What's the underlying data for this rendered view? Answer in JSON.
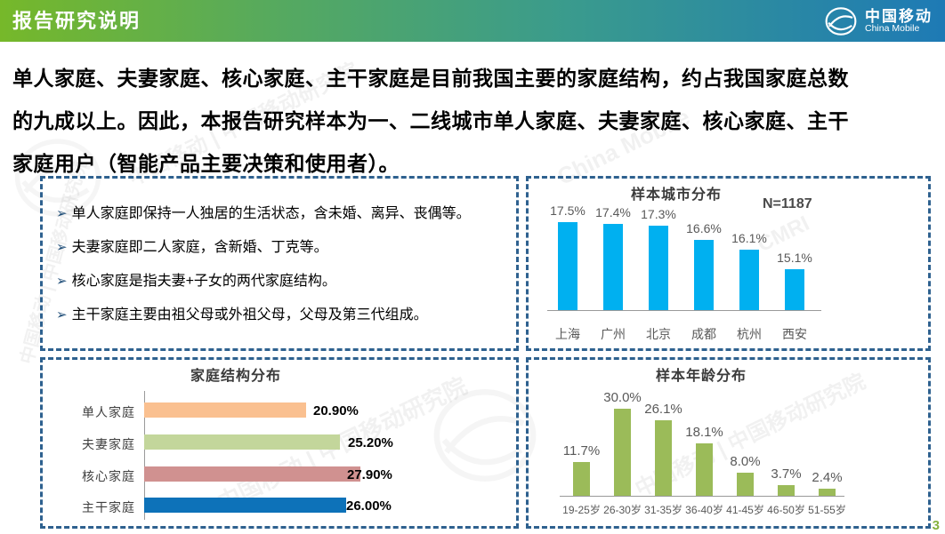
{
  "header": {
    "title": "报告研究说明",
    "brand": {
      "name_cn": "中国移动",
      "name_en": "China Mobile"
    }
  },
  "intro": {
    "line1": "单人家庭、夫妻家庭、核心家庭、主干家庭是目前我国主要的家庭结构，约占我国家庭总数",
    "line2": "的九成以上。因此，本报告研究样本为一、二线城市单人家庭、夫妻家庭、核心家庭、主干",
    "line3": "家庭用户（智能产品主要决策和使用者）。"
  },
  "definitions": {
    "bullet_glyph": "➢",
    "items": [
      "单人家庭即保持一人独居的生活状态，含未婚、离异、丧偶等。",
      "夫妻家庭即二人家庭，含新婚、丁克等。",
      "核心家庭是指夫妻+子女的两代家庭结构。",
      "主干家庭主要由祖父母或外祖父母，父母及第三代组成。"
    ]
  },
  "chart_data": [
    {
      "id": "city",
      "type": "bar",
      "title": "样本城市分布",
      "note": "N=1187",
      "categories": [
        "上海",
        "广州",
        "北京",
        "成都",
        "杭州",
        "西安"
      ],
      "values": [
        17.5,
        17.4,
        17.3,
        16.6,
        16.1,
        15.1
      ],
      "unit": "%",
      "value_decimals": 1,
      "ylim": [
        13,
        18
      ],
      "grid": false,
      "bar_color": "#00b0f0"
    },
    {
      "id": "family",
      "type": "bar-horizontal",
      "title": "家庭结构分布",
      "categories": [
        "单人家庭",
        "夫妻家庭",
        "核心家庭",
        "主干家庭"
      ],
      "values": [
        20.9,
        25.2,
        27.9,
        26.0
      ],
      "unit": "%",
      "value_decimals": 2,
      "xlim": [
        0,
        28
      ],
      "grid": false,
      "bar_colors": [
        "#fac090",
        "#c3d69b",
        "#d09190",
        "#0d72b9"
      ]
    },
    {
      "id": "age",
      "type": "bar",
      "title": "样本年龄分布",
      "categories": [
        "19-25岁",
        "26-30岁",
        "31-35岁",
        "36-40岁",
        "41-45岁",
        "46-50岁",
        "51-55岁"
      ],
      "values": [
        11.7,
        30.0,
        26.1,
        18.1,
        8.0,
        3.7,
        2.4
      ],
      "unit": "%",
      "value_decimals": 1,
      "ylim": [
        0,
        30
      ],
      "grid": false,
      "bar_color": "#9bbb59"
    }
  ],
  "watermark": {
    "text_cn": "中国移动 | 中国移动研究院",
    "text_en": "China Mobile",
    "abbr": "CMRI"
  },
  "page_number": "3",
  "colors": {
    "border": "#2e618f",
    "header_green": "#76b82a",
    "header_blue": "#1e7ab5",
    "city_bar": "#00b0f0",
    "age_bar": "#9bbb59",
    "page_number_green": "#86b23f"
  }
}
